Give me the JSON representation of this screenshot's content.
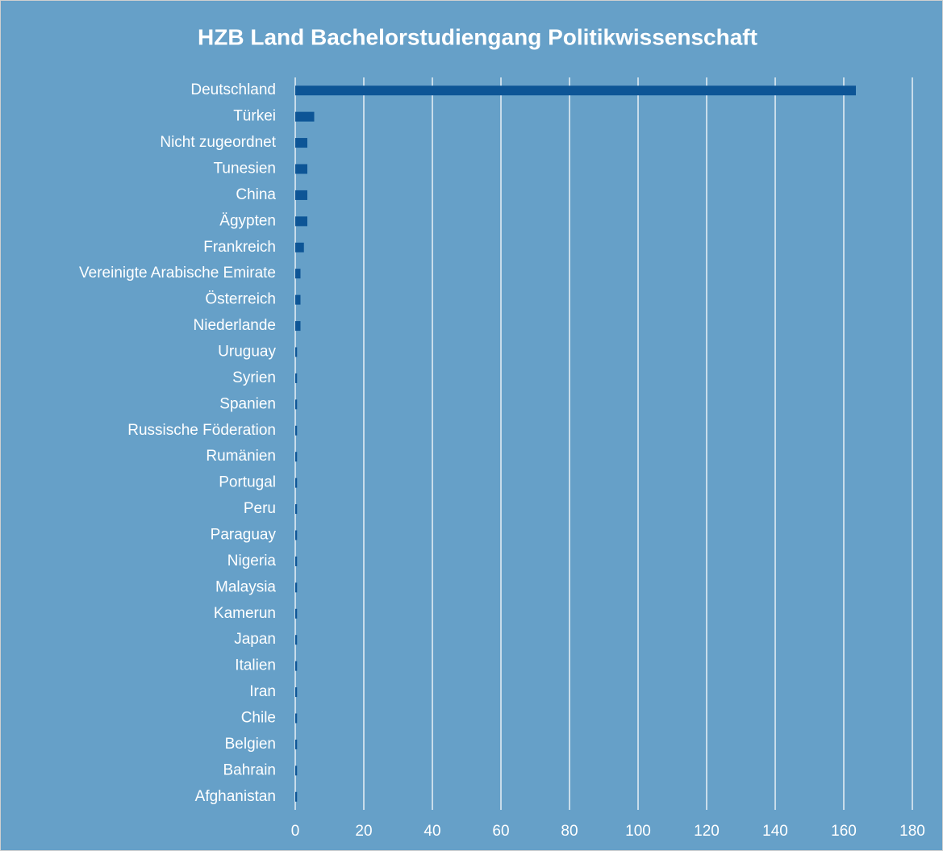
{
  "chart_data": {
    "type": "bar",
    "orientation": "horizontal",
    "title": "HZB Land Bachelorstudiengang Politikwissenschaft",
    "categories": [
      "Deutschland",
      "Türkei",
      "Nicht zugeordnet",
      "Tunesien",
      "China",
      "Ägypten",
      "Frankreich",
      "Vereinigte Arabische Emirate",
      "Österreich",
      "Niederlande",
      "Uruguay",
      "Syrien",
      "Spanien",
      "Russische Föderation",
      "Rumänien",
      "Portugal",
      "Peru",
      "Paraguay",
      "Nigeria",
      "Malaysia",
      "Kamerun",
      "Japan",
      "Italien",
      "Iran",
      "Chile",
      "Belgien",
      "Bahrain",
      "Afghanistan"
    ],
    "values": [
      164,
      6,
      4,
      4,
      4,
      4,
      3,
      2,
      2,
      2,
      1,
      1,
      1,
      1,
      1,
      1,
      1,
      1,
      1,
      1,
      1,
      1,
      1,
      1,
      1,
      1,
      1,
      1
    ],
    "color": "#0d5596",
    "xlim": [
      0,
      180
    ],
    "xticks": [
      0,
      20,
      40,
      60,
      80,
      100,
      120,
      140,
      160,
      180
    ],
    "grid": true
  }
}
